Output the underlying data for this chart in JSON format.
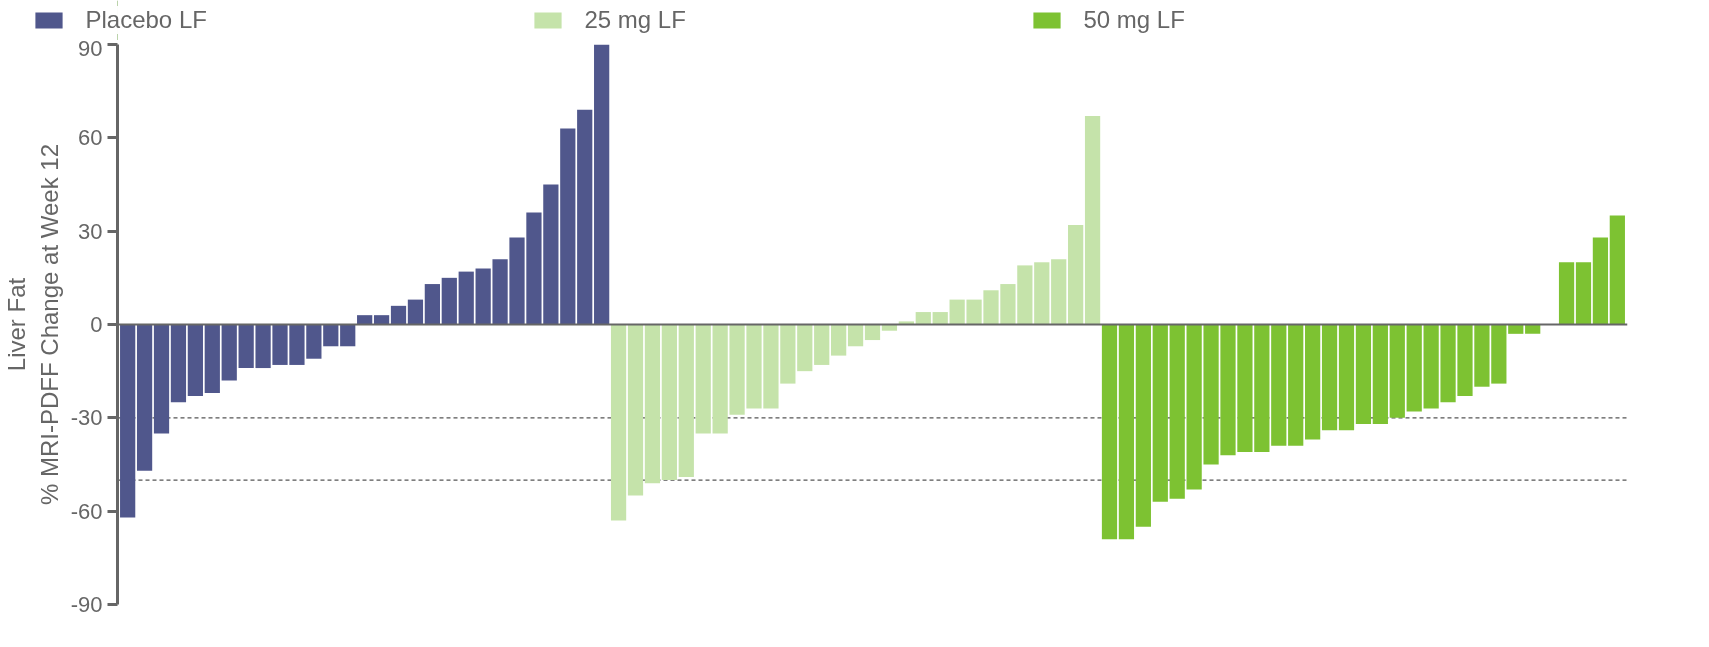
{
  "chart_data": {
    "type": "bar",
    "ylabel": "Liver Fat\n% MRI-PDFF Change at Week 12",
    "categories": [
      null,
      null,
      null,
      null,
      null,
      null,
      null,
      null,
      null,
      null,
      null,
      null,
      null,
      null,
      null,
      null,
      null,
      null,
      null,
      null,
      null,
      null,
      null,
      null,
      null,
      null,
      null,
      null,
      null,
      null,
      null,
      null,
      null,
      null,
      null,
      null,
      null,
      null,
      null,
      null,
      null,
      null,
      null,
      null,
      null,
      null,
      null,
      null,
      null,
      null,
      null,
      null,
      null,
      null,
      null,
      null,
      null,
      null,
      null,
      null,
      null,
      null,
      null,
      null,
      null,
      null,
      null,
      null,
      null,
      null,
      null,
      null,
      null,
      null,
      null,
      null,
      null,
      null,
      null,
      null,
      null,
      null,
      null,
      null,
      null,
      null,
      null,
      null,
      null
    ],
    "series": [
      {
        "name": "Placebo LF",
        "color": "#50578c",
        "values": [
          -62,
          -47,
          -35,
          -25,
          -23,
          -22,
          -18,
          -14,
          -14,
          -13,
          -13,
          -11,
          -7,
          -7,
          3,
          3,
          6,
          8,
          13,
          15,
          17,
          18,
          21,
          28,
          36,
          45,
          63,
          69,
          90,
          null,
          null,
          null,
          null,
          null,
          null,
          null,
          null,
          null,
          null,
          null,
          null,
          null,
          null,
          null,
          null,
          null,
          null,
          null,
          null,
          null,
          null,
          null,
          null,
          null,
          null,
          null,
          null,
          null,
          null,
          null,
          null,
          null,
          null,
          null,
          null,
          null,
          null,
          null,
          null,
          null,
          null,
          null,
          null,
          null,
          null,
          null,
          null,
          null,
          null,
          null,
          null,
          null,
          null,
          null,
          null,
          null,
          null,
          null,
          null
        ]
      },
      {
        "name": "25 mg LF",
        "color": "#c5e3aa",
        "values": [
          null,
          null,
          null,
          null,
          null,
          null,
          null,
          null,
          null,
          null,
          null,
          null,
          null,
          null,
          null,
          null,
          null,
          null,
          null,
          null,
          null,
          null,
          null,
          null,
          null,
          null,
          null,
          null,
          null,
          -63,
          -55,
          -51,
          -50,
          -49,
          -35,
          -35,
          -29,
          -27,
          -27,
          -19,
          -15,
          -13,
          -10,
          -7,
          -5,
          -2,
          1,
          4,
          4,
          8,
          8,
          11,
          13,
          19,
          20,
          21,
          32,
          67,
          null,
          null,
          null,
          null,
          null,
          null,
          null,
          null,
          null,
          null,
          null,
          null,
          null,
          null,
          null,
          null,
          null,
          null,
          null,
          null,
          null,
          null,
          null,
          null,
          null,
          null,
          null,
          null,
          null,
          null,
          null
        ]
      },
      {
        "name": "50 mg LF",
        "color": "#7dc232",
        "values": [
          null,
          null,
          null,
          null,
          null,
          null,
          null,
          null,
          null,
          null,
          null,
          null,
          null,
          null,
          null,
          null,
          null,
          null,
          null,
          null,
          null,
          null,
          null,
          null,
          null,
          null,
          null,
          null,
          null,
          null,
          null,
          null,
          null,
          null,
          null,
          null,
          null,
          null,
          null,
          null,
          null,
          null,
          null,
          null,
          null,
          null,
          null,
          null,
          null,
          null,
          null,
          null,
          null,
          null,
          null,
          null,
          null,
          null,
          -69,
          -69,
          -65,
          -57,
          -56,
          -53,
          -45,
          -42,
          -41,
          -41,
          -39,
          -39,
          -37,
          -34,
          -34,
          -32,
          -32,
          -30,
          -28,
          -27,
          -25,
          -23,
          -20,
          -19,
          -3,
          -3,
          0,
          20,
          20,
          28,
          35
        ]
      }
    ],
    "ylim": [
      -90,
      90
    ],
    "yticks": [
      -90,
      -60,
      -30,
      0,
      30,
      60,
      90
    ],
    "ref_lines": [
      {
        "axis": "y",
        "value": -30,
        "color": "#555555",
        "line_style": "dashed"
      },
      {
        "axis": "y",
        "value": -50,
        "color": "#555555",
        "line_style": "dashed"
      }
    ],
    "legend": "top",
    "grid": false
  }
}
